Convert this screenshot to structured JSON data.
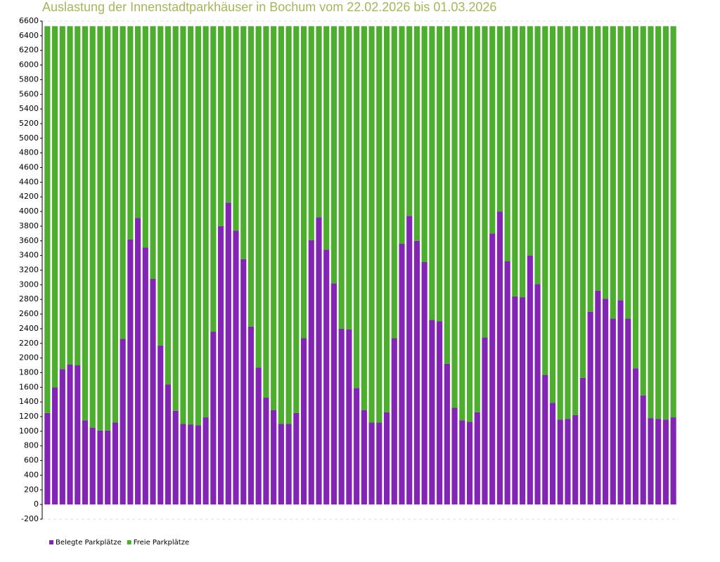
{
  "chart_data": {
    "type": "bar",
    "stacked": true,
    "title": "Auslastung der Innenstadtparkhäuser in Bochum vom 22.02.2026 bis 01.03.2026",
    "categories": [
      null,
      null,
      null,
      null,
      null,
      null,
      null,
      null,
      null,
      null,
      null,
      null,
      null,
      null,
      null,
      null,
      null,
      null,
      null,
      null,
      null,
      null,
      null,
      null,
      null,
      null,
      null,
      null,
      null,
      null,
      null,
      null,
      null,
      null,
      null,
      null,
      null,
      null,
      null,
      null,
      null,
      null,
      null,
      null,
      null,
      null,
      null,
      null,
      null,
      null,
      null,
      null,
      null,
      null,
      null,
      null,
      null,
      null,
      null,
      null,
      null,
      null,
      null,
      null,
      null,
      null,
      null,
      null,
      null,
      null,
      null,
      null,
      null,
      null,
      null,
      null,
      null,
      null,
      null,
      null,
      null,
      null,
      null,
      null
    ],
    "series": [
      {
        "name": "Belegte Parkplätze",
        "color": "#8224b4",
        "values": [
          1250,
          1600,
          1850,
          1910,
          1900,
          1150,
          1050,
          1010,
          1010,
          1120,
          2260,
          3620,
          3910,
          3510,
          3080,
          2170,
          1640,
          1280,
          1100,
          1090,
          1080,
          1190,
          2360,
          3800,
          4120,
          3740,
          3350,
          2430,
          1870,
          1460,
          1290,
          1100,
          1100,
          1250,
          2270,
          3610,
          3920,
          3480,
          3020,
          2400,
          2390,
          1590,
          1290,
          1120,
          1120,
          1260,
          2270,
          3560,
          3940,
          3600,
          3310,
          2520,
          2500,
          1920,
          1320,
          1150,
          1130,
          1260,
          2280,
          3700,
          4000,
          3320,
          2840,
          2830,
          3400,
          3010,
          1770,
          1390,
          1160,
          1170,
          1220,
          1730,
          2630,
          2920,
          2810,
          2540,
          2790,
          2540,
          1860,
          1490,
          1180,
          1170,
          1160,
          1190
        ]
      },
      {
        "name": "Freie Parkplätze",
        "color": "#4cad2e",
        "values": [
          5280,
          4930,
          4680,
          4620,
          4630,
          5380,
          5480,
          5520,
          5520,
          5410,
          4270,
          2910,
          2620,
          3020,
          3450,
          4360,
          4890,
          5250,
          5430,
          5440,
          5450,
          5340,
          4170,
          2730,
          2410,
          2790,
          3180,
          4100,
          4660,
          5070,
          5240,
          5430,
          5430,
          5280,
          4260,
          2920,
          2610,
          3050,
          3510,
          4130,
          4140,
          4940,
          5240,
          5410,
          5410,
          5270,
          4260,
          2970,
          2590,
          2930,
          3220,
          4010,
          4030,
          4610,
          5210,
          5380,
          5400,
          5270,
          4250,
          2830,
          2530,
          3210,
          3690,
          3700,
          3130,
          3520,
          4760,
          5140,
          5370,
          5360,
          5310,
          4800,
          3900,
          3610,
          3720,
          3990,
          3740,
          3990,
          4670,
          5040,
          5350,
          5360,
          5370,
          5340
        ]
      }
    ],
    "ylim": [
      -200,
      6600
    ],
    "yticks": [
      -200,
      0,
      200,
      400,
      600,
      800,
      1000,
      1200,
      1400,
      1600,
      1800,
      2000,
      2200,
      2400,
      2600,
      2800,
      3000,
      3200,
      3400,
      3600,
      3800,
      4000,
      4200,
      4400,
      4600,
      4800,
      5000,
      5200,
      5400,
      5600,
      5800,
      6000,
      6200,
      6400,
      6600
    ],
    "grid": false
  }
}
